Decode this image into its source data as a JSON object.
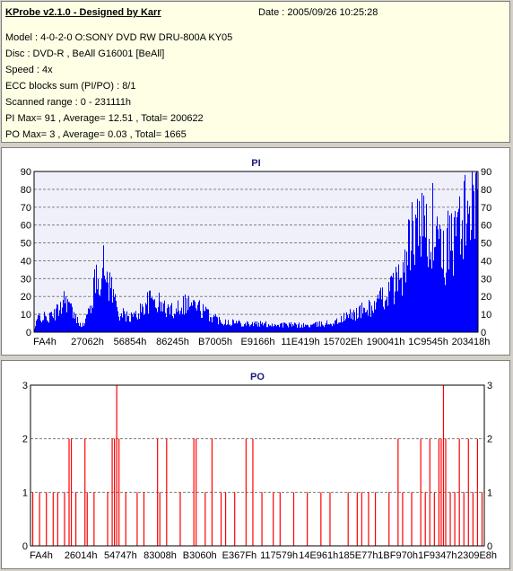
{
  "info": {
    "title": "KProbe v2.1.0 - Designed by Karr",
    "date": "Date : 2005/09/26 10:25:28",
    "lines": [
      "Model : 4-0-2-0 O:SONY    DVD RW DRU-800A  KY05",
      "Disc : DVD-R , BeAll G16001 [BeAll]",
      "Speed : 4x",
      "ECC blocks sum (PI/PO) : 8/1",
      "Scanned range : 0 - 231111h",
      "PI Max= 91 , Average= 12.51 , Total= 200622",
      "PO Max= 3 , Average= 0.03 , Total= 1665"
    ]
  },
  "chart_data": [
    {
      "type": "bar",
      "title": "PI",
      "color": "#0000ff",
      "ylim": [
        0,
        90
      ],
      "yticks": [
        0,
        10,
        20,
        30,
        40,
        50,
        60,
        70,
        80,
        90
      ],
      "xtick_labels": [
        "FA4h",
        "27062h",
        "56854h",
        "86245h",
        "B7005h",
        "E9166h",
        "11E419h",
        "15702Eh",
        "190041h",
        "1C9545h",
        "203418h"
      ],
      "xlim": [
        "0h",
        "231111h"
      ],
      "grid": true,
      "profile": [
        [
          0,
          2
        ],
        [
          0.01,
          10
        ],
        [
          0.03,
          8
        ],
        [
          0.05,
          12
        ],
        [
          0.07,
          22
        ],
        [
          0.09,
          9
        ],
        [
          0.11,
          4
        ],
        [
          0.125,
          14
        ],
        [
          0.14,
          33
        ],
        [
          0.155,
          38
        ],
        [
          0.17,
          30
        ],
        [
          0.19,
          12
        ],
        [
          0.21,
          9
        ],
        [
          0.23,
          10
        ],
        [
          0.25,
          17
        ],
        [
          0.27,
          20
        ],
        [
          0.29,
          15
        ],
        [
          0.31,
          13
        ],
        [
          0.33,
          17
        ],
        [
          0.35,
          18
        ],
        [
          0.37,
          15
        ],
        [
          0.39,
          11
        ],
        [
          0.42,
          7
        ],
        [
          0.45,
          6
        ],
        [
          0.5,
          5
        ],
        [
          0.56,
          4.5
        ],
        [
          0.62,
          4
        ],
        [
          0.65,
          5
        ],
        [
          0.68,
          6
        ],
        [
          0.71,
          10
        ],
        [
          0.74,
          13
        ],
        [
          0.77,
          16
        ],
        [
          0.8,
          25
        ],
        [
          0.82,
          30
        ],
        [
          0.835,
          40
        ],
        [
          0.85,
          58
        ],
        [
          0.87,
          62
        ],
        [
          0.89,
          60
        ],
        [
          0.91,
          52
        ],
        [
          0.925,
          45
        ],
        [
          0.94,
          55
        ],
        [
          0.96,
          62
        ],
        [
          0.975,
          70
        ],
        [
          0.985,
          80
        ],
        [
          1.0,
          86
        ]
      ]
    },
    {
      "type": "bar",
      "title": "PO",
      "color": "#ff0000",
      "ylim": [
        0,
        3
      ],
      "yticks": [
        0,
        1,
        2,
        3
      ],
      "xtick_labels": [
        "FA4h",
        "26014h",
        "54747h",
        "83008h",
        "B3060h",
        "E367Fh",
        "117579h",
        "14E961h",
        "185E77h",
        "1BF970h",
        "1F9347h",
        "2309E8h"
      ],
      "xlim": [
        "0h",
        "231111h"
      ],
      "grid": true,
      "spikes": [
        [
          0.005,
          1
        ],
        [
          0.02,
          1
        ],
        [
          0.035,
          1
        ],
        [
          0.05,
          1
        ],
        [
          0.06,
          1
        ],
        [
          0.075,
          1
        ],
        [
          0.085,
          2
        ],
        [
          0.09,
          2
        ],
        [
          0.1,
          1
        ],
        [
          0.12,
          2
        ],
        [
          0.125,
          1
        ],
        [
          0.14,
          1
        ],
        [
          0.17,
          1
        ],
        [
          0.18,
          2
        ],
        [
          0.185,
          2
        ],
        [
          0.19,
          3
        ],
        [
          0.195,
          2
        ],
        [
          0.21,
          1
        ],
        [
          0.235,
          1
        ],
        [
          0.25,
          1
        ],
        [
          0.28,
          2
        ],
        [
          0.285,
          1
        ],
        [
          0.3,
          2
        ],
        [
          0.33,
          1
        ],
        [
          0.36,
          2
        ],
        [
          0.365,
          2
        ],
        [
          0.385,
          1
        ],
        [
          0.4,
          2
        ],
        [
          0.42,
          1
        ],
        [
          0.43,
          1
        ],
        [
          0.45,
          1
        ],
        [
          0.475,
          2
        ],
        [
          0.49,
          2
        ],
        [
          0.51,
          1
        ],
        [
          0.535,
          1
        ],
        [
          0.55,
          1
        ],
        [
          0.58,
          1
        ],
        [
          0.61,
          1
        ],
        [
          0.64,
          1
        ],
        [
          0.66,
          1
        ],
        [
          0.7,
          1
        ],
        [
          0.72,
          1
        ],
        [
          0.73,
          1
        ],
        [
          0.745,
          1
        ],
        [
          0.76,
          1
        ],
        [
          0.79,
          1
        ],
        [
          0.81,
          2
        ],
        [
          0.82,
          1
        ],
        [
          0.84,
          1
        ],
        [
          0.86,
          2
        ],
        [
          0.87,
          1
        ],
        [
          0.88,
          2
        ],
        [
          0.89,
          1
        ],
        [
          0.9,
          2
        ],
        [
          0.905,
          2
        ],
        [
          0.91,
          3
        ],
        [
          0.915,
          2
        ],
        [
          0.925,
          1
        ],
        [
          0.935,
          1
        ],
        [
          0.945,
          2
        ],
        [
          0.955,
          1
        ],
        [
          0.965,
          2
        ],
        [
          0.975,
          1
        ],
        [
          0.985,
          2
        ],
        [
          0.995,
          1
        ]
      ]
    }
  ]
}
